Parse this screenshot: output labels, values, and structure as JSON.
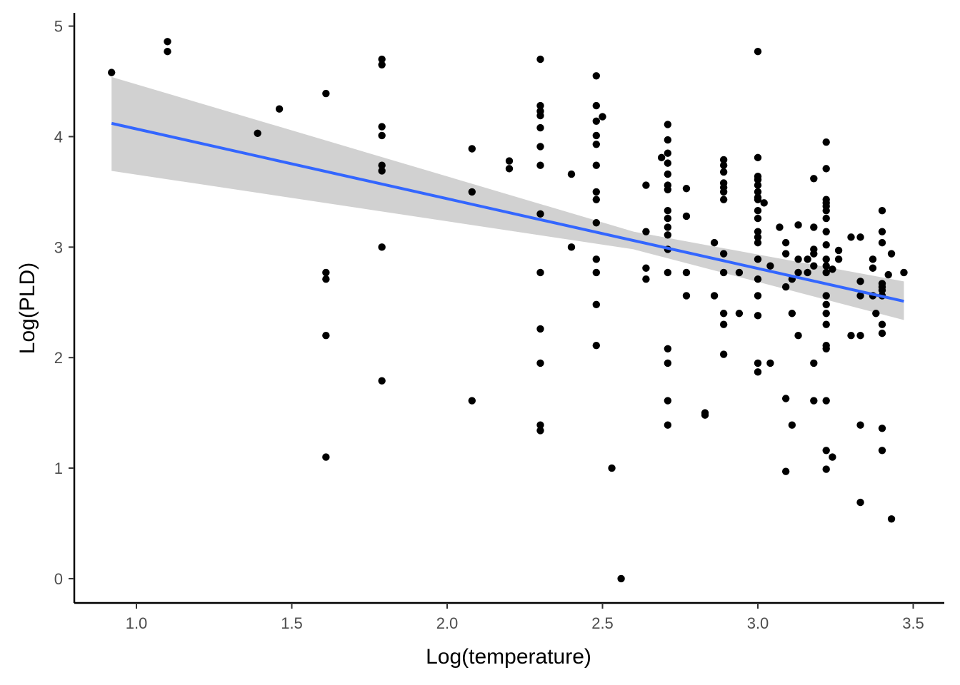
{
  "chart_data": {
    "type": "scatter",
    "title": "",
    "xlabel": "Log(temperature)",
    "ylabel": "Log(PLD)",
    "xlim": [
      0.8,
      3.6
    ],
    "ylim": [
      -0.22,
      5.12
    ],
    "xticks": [
      1.0,
      1.5,
      2.0,
      2.5,
      3.0,
      3.5
    ],
    "xtick_labels": [
      "1.0",
      "1.5",
      "2.0",
      "2.5",
      "3.0",
      "3.5"
    ],
    "yticks": [
      0,
      1,
      2,
      3,
      4,
      5
    ],
    "ytick_labels": [
      "0",
      "1",
      "2",
      "3",
      "4",
      "5"
    ],
    "grid": false,
    "colors": {
      "points": "#000000",
      "fit_line": "#3366ff",
      "confidence_band": "#cccccc"
    },
    "fit": {
      "method": "linear",
      "x": [
        0.92,
        3.47
      ],
      "y": [
        4.12,
        2.51
      ],
      "band_lower": [
        3.69,
        2.34
      ],
      "band_upper": [
        4.54,
        2.69
      ],
      "band_mid_x": 2.6,
      "band_mid_lower": 2.98,
      "band_mid_upper": 3.14
    },
    "points": [
      [
        0.92,
        4.58
      ],
      [
        1.1,
        4.86
      ],
      [
        1.1,
        4.77
      ],
      [
        1.39,
        4.03
      ],
      [
        1.46,
        4.25
      ],
      [
        1.61,
        4.39
      ],
      [
        1.61,
        2.77
      ],
      [
        1.61,
        2.71
      ],
      [
        1.61,
        2.2
      ],
      [
        1.61,
        1.1
      ],
      [
        1.79,
        4.7
      ],
      [
        1.79,
        4.65
      ],
      [
        1.79,
        4.09
      ],
      [
        1.79,
        4.01
      ],
      [
        1.79,
        3.74
      ],
      [
        1.79,
        3.69
      ],
      [
        1.79,
        3.0
      ],
      [
        1.79,
        1.79
      ],
      [
        2.08,
        3.89
      ],
      [
        2.08,
        3.5
      ],
      [
        2.08,
        1.61
      ],
      [
        2.2,
        3.78
      ],
      [
        2.2,
        3.71
      ],
      [
        2.3,
        4.7
      ],
      [
        2.3,
        4.28
      ],
      [
        2.3,
        4.23
      ],
      [
        2.3,
        4.19
      ],
      [
        2.3,
        4.08
      ],
      [
        2.3,
        3.91
      ],
      [
        2.3,
        3.74
      ],
      [
        2.3,
        3.3
      ],
      [
        2.3,
        2.77
      ],
      [
        2.3,
        2.26
      ],
      [
        2.3,
        1.95
      ],
      [
        2.3,
        1.39
      ],
      [
        2.3,
        1.34
      ],
      [
        2.4,
        3.66
      ],
      [
        2.4,
        3.0
      ],
      [
        2.48,
        4.55
      ],
      [
        2.48,
        4.28
      ],
      [
        2.48,
        4.14
      ],
      [
        2.48,
        4.01
      ],
      [
        2.48,
        3.93
      ],
      [
        2.48,
        3.74
      ],
      [
        2.48,
        3.5
      ],
      [
        2.48,
        3.43
      ],
      [
        2.48,
        3.22
      ],
      [
        2.48,
        2.89
      ],
      [
        2.48,
        2.77
      ],
      [
        2.48,
        2.48
      ],
      [
        2.48,
        2.11
      ],
      [
        2.5,
        4.18
      ],
      [
        2.53,
        1.0
      ],
      [
        2.56,
        0.0
      ],
      [
        2.64,
        3.56
      ],
      [
        2.64,
        3.14
      ],
      [
        2.64,
        2.81
      ],
      [
        2.64,
        2.71
      ],
      [
        2.69,
        3.81
      ],
      [
        2.71,
        4.11
      ],
      [
        2.71,
        3.97
      ],
      [
        2.71,
        3.85
      ],
      [
        2.71,
        3.76
      ],
      [
        2.71,
        3.66
      ],
      [
        2.71,
        3.56
      ],
      [
        2.71,
        3.52
      ],
      [
        2.71,
        3.33
      ],
      [
        2.71,
        3.26
      ],
      [
        2.71,
        3.18
      ],
      [
        2.71,
        3.11
      ],
      [
        2.71,
        2.98
      ],
      [
        2.71,
        2.77
      ],
      [
        2.71,
        2.08
      ],
      [
        2.71,
        1.95
      ],
      [
        2.71,
        1.61
      ],
      [
        2.71,
        1.39
      ],
      [
        2.77,
        3.53
      ],
      [
        2.77,
        3.28
      ],
      [
        2.77,
        2.77
      ],
      [
        2.77,
        2.56
      ],
      [
        2.83,
        1.5
      ],
      [
        2.83,
        1.48
      ],
      [
        2.86,
        3.04
      ],
      [
        2.86,
        2.56
      ],
      [
        2.89,
        3.79
      ],
      [
        2.89,
        3.74
      ],
      [
        2.89,
        3.68
      ],
      [
        2.89,
        3.58
      ],
      [
        2.89,
        3.54
      ],
      [
        2.89,
        3.5
      ],
      [
        2.89,
        3.43
      ],
      [
        2.89,
        2.94
      ],
      [
        2.89,
        2.77
      ],
      [
        2.89,
        2.4
      ],
      [
        2.89,
        2.3
      ],
      [
        2.89,
        2.03
      ],
      [
        2.94,
        2.77
      ],
      [
        2.94,
        2.4
      ],
      [
        3.0,
        4.77
      ],
      [
        3.0,
        3.81
      ],
      [
        3.0,
        3.64
      ],
      [
        3.0,
        3.61
      ],
      [
        3.0,
        3.56
      ],
      [
        3.0,
        3.5
      ],
      [
        3.0,
        3.45
      ],
      [
        3.0,
        3.43
      ],
      [
        3.0,
        3.33
      ],
      [
        3.0,
        3.26
      ],
      [
        3.0,
        3.14
      ],
      [
        3.0,
        3.09
      ],
      [
        3.0,
        3.04
      ],
      [
        3.0,
        2.89
      ],
      [
        3.0,
        2.71
      ],
      [
        3.0,
        2.56
      ],
      [
        3.0,
        2.38
      ],
      [
        3.0,
        1.95
      ],
      [
        3.0,
        1.87
      ],
      [
        3.02,
        3.4
      ],
      [
        3.04,
        2.83
      ],
      [
        3.04,
        1.95
      ],
      [
        3.07,
        3.18
      ],
      [
        3.09,
        3.04
      ],
      [
        3.09,
        2.94
      ],
      [
        3.09,
        2.64
      ],
      [
        3.09,
        1.63
      ],
      [
        3.09,
        0.97
      ],
      [
        3.11,
        2.71
      ],
      [
        3.11,
        2.4
      ],
      [
        3.11,
        1.39
      ],
      [
        3.13,
        3.2
      ],
      [
        3.13,
        2.89
      ],
      [
        3.13,
        2.77
      ],
      [
        3.13,
        2.2
      ],
      [
        3.16,
        2.89
      ],
      [
        3.16,
        2.77
      ],
      [
        3.18,
        3.18
      ],
      [
        3.18,
        2.98
      ],
      [
        3.18,
        2.94
      ],
      [
        3.18,
        2.83
      ],
      [
        3.18,
        3.62
      ],
      [
        3.18,
        1.95
      ],
      [
        3.18,
        1.61
      ],
      [
        3.22,
        3.95
      ],
      [
        3.22,
        3.71
      ],
      [
        3.22,
        3.43
      ],
      [
        3.22,
        3.4
      ],
      [
        3.22,
        3.37
      ],
      [
        3.22,
        3.33
      ],
      [
        3.22,
        3.26
      ],
      [
        3.22,
        3.14
      ],
      [
        3.22,
        3.02
      ],
      [
        3.22,
        2.89
      ],
      [
        3.22,
        2.83
      ],
      [
        3.22,
        2.77
      ],
      [
        3.22,
        2.56
      ],
      [
        3.22,
        2.48
      ],
      [
        3.22,
        2.4
      ],
      [
        3.22,
        2.3
      ],
      [
        3.22,
        2.11
      ],
      [
        3.22,
        2.08
      ],
      [
        3.22,
        1.61
      ],
      [
        3.22,
        1.16
      ],
      [
        3.22,
        0.99
      ],
      [
        3.24,
        2.8
      ],
      [
        3.24,
        1.1
      ],
      [
        3.26,
        2.97
      ],
      [
        3.26,
        2.89
      ],
      [
        3.3,
        3.09
      ],
      [
        3.3,
        2.2
      ],
      [
        3.33,
        3.09
      ],
      [
        3.33,
        2.69
      ],
      [
        3.33,
        2.56
      ],
      [
        3.33,
        2.2
      ],
      [
        3.33,
        1.39
      ],
      [
        3.33,
        0.69
      ],
      [
        3.37,
        2.89
      ],
      [
        3.37,
        2.81
      ],
      [
        3.37,
        2.56
      ],
      [
        3.38,
        2.4
      ],
      [
        3.4,
        3.33
      ],
      [
        3.4,
        3.14
      ],
      [
        3.4,
        3.04
      ],
      [
        3.4,
        2.67
      ],
      [
        3.4,
        2.64
      ],
      [
        3.4,
        2.61
      ],
      [
        3.4,
        2.56
      ],
      [
        3.4,
        2.3
      ],
      [
        3.4,
        2.22
      ],
      [
        3.4,
        1.36
      ],
      [
        3.4,
        1.16
      ],
      [
        3.42,
        2.75
      ],
      [
        3.43,
        2.94
      ],
      [
        3.43,
        0.54
      ],
      [
        3.47,
        2.77
      ]
    ]
  }
}
